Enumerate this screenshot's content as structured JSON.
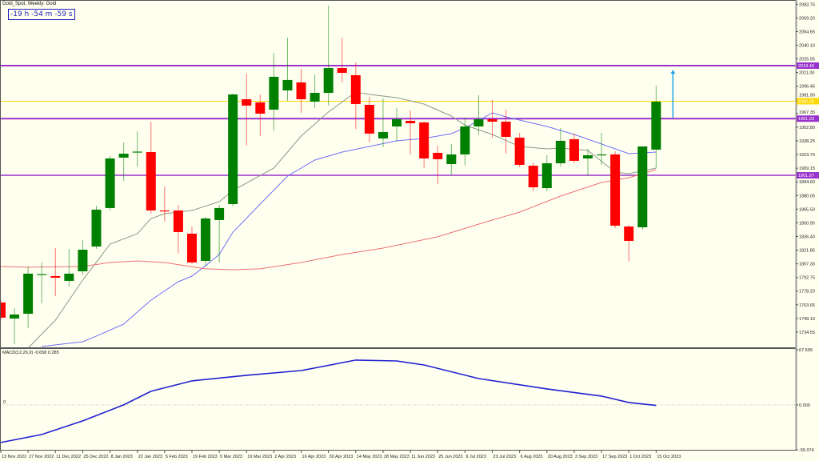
{
  "header": {
    "title": "Gold_Spot, Weekly:  Gold",
    "timer": "-19 h -54 m -59 s"
  },
  "colors": {
    "background": "#fffff0",
    "bull": "#008000",
    "bear": "#ff0000",
    "level_line": "#9932cc",
    "yellow_line": "#ffd700",
    "arrow": "#1ea0e6",
    "ma_gray": "#8a9a8a",
    "ma_blue": "#6f6ff5",
    "ma_red": "#f07070",
    "macd": "#2020d0"
  },
  "price_axis": {
    "ticks": [
      "2083.75",
      "2069.20",
      "2054.65",
      "2040.10",
      "2025.55",
      "2011.00",
      "1996.45",
      "1981.90",
      "1967.35",
      "1952.80",
      "1938.25",
      "1923.70",
      "1909.15",
      "1894.60",
      "1880.05",
      "1865.50",
      "1850.95",
      "1836.40",
      "1821.85",
      "1807.30",
      "1792.75",
      "1778.20",
      "1763.65",
      "1749.10",
      "1734.55"
    ],
    "ylim": [
      1718.3,
      2088.3
    ]
  },
  "levels": [
    {
      "price": 2018.4,
      "label": "2018.40",
      "type": "purple"
    },
    {
      "price": 1980.5,
      "label": "1980.50",
      "type": "yellow"
    },
    {
      "price": 1961.93,
      "label": "1961.93",
      "type": "purple"
    },
    {
      "price": 1901.57,
      "label": "1901.57",
      "type": "purple"
    }
  ],
  "arrow": {
    "icon": "up-arrow-icon",
    "date": "2023-10-15",
    "from": 1963,
    "to": 2014
  },
  "time_axis": [
    "13 Nov 2022",
    "27 Nov 2022",
    "11 Dec 2022",
    "25 Dec 2022",
    "8 Jan 2023",
    "22 Jan 2023",
    "5 Feb 2023",
    "19 Feb 2023",
    "5 Mar 2023",
    "19 Mar 2023",
    "2 Apr 2023",
    "16 Apr 2023",
    "30 Apr 2023",
    "14 May 2023",
    "28 May 2023",
    "11 Jun 2023",
    "25 Jun 2023",
    "9 Jul 2023",
    "23 Jul 2023",
    "6 Aug 2023",
    "20 Aug 2023",
    "3 Sep 2023",
    "17 Sep 2023",
    "1 Oct 2023",
    "15 Oct 2023"
  ],
  "chart_data": {
    "type": "candlestick",
    "candles": [
      {
        "d": "2022-11-13",
        "o": 1766.1,
        "h": 1768.6,
        "l": 1747.3,
        "c": 1749.9
      },
      {
        "d": "2022-11-20",
        "o": 1749.0,
        "h": 1760.1,
        "l": 1721.7,
        "c": 1753.3
      },
      {
        "d": "2022-11-27",
        "o": 1754.1,
        "h": 1804.4,
        "l": 1738.8,
        "c": 1796.8
      },
      {
        "d": "2022-12-04",
        "o": 1795.9,
        "h": 1808.7,
        "l": 1765.2,
        "c": 1796.3
      },
      {
        "d": "2022-12-11",
        "o": 1794.2,
        "h": 1824.0,
        "l": 1772.9,
        "c": 1792.5
      },
      {
        "d": "2022-12-18",
        "o": 1789.1,
        "h": 1823.2,
        "l": 1783.1,
        "c": 1796.8
      },
      {
        "d": "2022-12-25",
        "o": 1799.3,
        "h": 1832.6,
        "l": 1795.9,
        "c": 1822.3
      },
      {
        "d": "2023-01-01",
        "o": 1825.7,
        "h": 1869.2,
        "l": 1823.2,
        "c": 1865.0
      },
      {
        "d": "2023-01-08",
        "o": 1866.7,
        "h": 1922.1,
        "l": 1864.1,
        "c": 1919.5
      },
      {
        "d": "2023-01-15",
        "o": 1920.4,
        "h": 1936.6,
        "l": 1895.6,
        "c": 1924.6
      },
      {
        "d": "2023-01-22",
        "o": 1925.9,
        "h": 1948.5,
        "l": 1911.0,
        "c": 1926.8
      },
      {
        "d": "2023-01-29",
        "o": 1926.3,
        "h": 1958.7,
        "l": 1860.7,
        "c": 1864.1
      },
      {
        "d": "2023-02-05",
        "o": 1864.1,
        "h": 1889.7,
        "l": 1852.2,
        "c": 1863.7
      },
      {
        "d": "2023-02-12",
        "o": 1864.1,
        "h": 1870.1,
        "l": 1818.1,
        "c": 1841.1
      },
      {
        "d": "2023-02-19",
        "o": 1839.4,
        "h": 1847.0,
        "l": 1807.0,
        "c": 1808.7
      },
      {
        "d": "2023-02-26",
        "o": 1810.4,
        "h": 1857.3,
        "l": 1804.4,
        "c": 1855.6
      },
      {
        "d": "2023-03-05",
        "o": 1853.9,
        "h": 1870.1,
        "l": 1808.7,
        "c": 1866.7
      },
      {
        "d": "2023-03-12",
        "o": 1870.9,
        "h": 1988.6,
        "l": 1868.4,
        "c": 1987.7
      },
      {
        "d": "2023-03-19",
        "o": 1982.6,
        "h": 2009.9,
        "l": 1933.1,
        "c": 1975.8
      },
      {
        "d": "2023-03-26",
        "o": 1979.2,
        "h": 1987.7,
        "l": 1943.4,
        "c": 1967.2
      },
      {
        "d": "2023-04-02",
        "o": 1971.5,
        "h": 2032.0,
        "l": 1949.3,
        "c": 2006.5
      },
      {
        "d": "2023-04-09",
        "o": 1992.0,
        "h": 2048.2,
        "l": 1980.9,
        "c": 2003.1
      },
      {
        "d": "2023-04-16",
        "o": 2000.5,
        "h": 2015.0,
        "l": 1968.1,
        "c": 1982.6
      },
      {
        "d": "2023-04-23",
        "o": 1980.0,
        "h": 2009.0,
        "l": 1973.2,
        "c": 1989.4
      },
      {
        "d": "2023-04-30",
        "o": 1989.4,
        "h": 2082.3,
        "l": 1975.8,
        "c": 2015.8
      },
      {
        "d": "2023-05-07",
        "o": 2015.8,
        "h": 2048.2,
        "l": 2000.5,
        "c": 2010.7
      },
      {
        "d": "2023-05-14",
        "o": 2008.2,
        "h": 2021.8,
        "l": 1951.0,
        "c": 1977.5
      },
      {
        "d": "2023-05-21",
        "o": 1976.6,
        "h": 1985.1,
        "l": 1936.6,
        "c": 1946.0
      },
      {
        "d": "2023-05-28",
        "o": 1940.8,
        "h": 1983.4,
        "l": 1931.4,
        "c": 1947.6
      },
      {
        "d": "2023-06-04",
        "o": 1953.6,
        "h": 1973.2,
        "l": 1937.4,
        "c": 1961.3
      },
      {
        "d": "2023-06-11",
        "o": 1959.6,
        "h": 1970.7,
        "l": 1923.8,
        "c": 1957.0
      },
      {
        "d": "2023-06-18",
        "o": 1957.9,
        "h": 1958.7,
        "l": 1909.3,
        "c": 1919.5
      },
      {
        "d": "2023-06-25",
        "o": 1925.5,
        "h": 1933.1,
        "l": 1892.2,
        "c": 1918.7
      },
      {
        "d": "2023-07-02",
        "o": 1913.5,
        "h": 1934.8,
        "l": 1902.4,
        "c": 1923.8
      },
      {
        "d": "2023-07-09",
        "o": 1923.8,
        "h": 1963.0,
        "l": 1911.8,
        "c": 1953.6
      },
      {
        "d": "2023-07-16",
        "o": 1953.6,
        "h": 1986.9,
        "l": 1945.1,
        "c": 1961.3
      },
      {
        "d": "2023-07-23",
        "o": 1961.3,
        "h": 1981.7,
        "l": 1941.7,
        "c": 1958.7
      },
      {
        "d": "2023-07-30",
        "o": 1958.7,
        "h": 1971.5,
        "l": 1924.6,
        "c": 1942.5
      },
      {
        "d": "2023-08-06",
        "o": 1941.7,
        "h": 1946.8,
        "l": 1910.1,
        "c": 1912.7
      },
      {
        "d": "2023-08-13",
        "o": 1911.8,
        "h": 1915.2,
        "l": 1884.6,
        "c": 1888.8
      },
      {
        "d": "2023-08-20",
        "o": 1887.9,
        "h": 1922.9,
        "l": 1884.6,
        "c": 1914.4
      },
      {
        "d": "2023-08-27",
        "o": 1914.4,
        "h": 1951.9,
        "l": 1911.0,
        "c": 1938.3
      },
      {
        "d": "2023-09-03",
        "o": 1940.0,
        "h": 1945.9,
        "l": 1914.4,
        "c": 1917.0
      },
      {
        "d": "2023-09-10",
        "o": 1919.5,
        "h": 1929.7,
        "l": 1900.7,
        "c": 1922.9
      },
      {
        "d": "2023-09-17",
        "o": 1923.3,
        "h": 1946.8,
        "l": 1912.7,
        "c": 1923.8
      },
      {
        "d": "2023-09-24",
        "o": 1923.8,
        "h": 1927.2,
        "l": 1845.3,
        "c": 1847.9
      },
      {
        "d": "2023-10-01",
        "o": 1847.0,
        "h": 1848.7,
        "l": 1809.5,
        "c": 1831.7
      },
      {
        "d": "2023-10-08",
        "o": 1846.2,
        "h": 1932.3,
        "l": 1843.6,
        "c": 1932.3
      },
      {
        "d": "2023-10-15",
        "o": 1928.9,
        "h": 1997.1,
        "l": 1909.3,
        "c": 1980.0
      }
    ],
    "moving_averages": [
      {
        "color": "ma_gray",
        "points": [
          [
            "2022-11-27",
            1717.5
          ],
          [
            "2022-12-11",
            1747.3
          ],
          [
            "2022-12-25",
            1789.9
          ],
          [
            "2023-01-08",
            1828.3
          ],
          [
            "2023-01-22",
            1839.4
          ],
          [
            "2023-01-29",
            1855.6
          ],
          [
            "2023-02-05",
            1860.7
          ],
          [
            "2023-02-19",
            1864.1
          ],
          [
            "2023-03-05",
            1873.5
          ],
          [
            "2023-03-12",
            1885.4
          ],
          [
            "2023-04-02",
            1909.3
          ],
          [
            "2023-04-16",
            1943.4
          ],
          [
            "2023-04-30",
            1969.0
          ],
          [
            "2023-05-14",
            1990.3
          ],
          [
            "2023-05-21",
            1987.7
          ],
          [
            "2023-06-04",
            1984.3
          ],
          [
            "2023-06-18",
            1977.5
          ],
          [
            "2023-07-02",
            1964.7
          ],
          [
            "2023-07-09",
            1955.0
          ],
          [
            "2023-07-23",
            1945.1
          ],
          [
            "2023-08-06",
            1932.3
          ],
          [
            "2023-08-20",
            1929.7
          ],
          [
            "2023-08-27",
            1930.6
          ],
          [
            "2023-09-10",
            1928.0
          ],
          [
            "2023-09-24",
            1905.0
          ],
          [
            "2023-10-01",
            1903.3
          ],
          [
            "2023-10-15",
            1909.3
          ]
        ]
      },
      {
        "color": "ma_blue",
        "points": [
          [
            "2022-12-04",
            1719.2
          ],
          [
            "2022-12-25",
            1724.3
          ],
          [
            "2023-01-01",
            1730.3
          ],
          [
            "2023-01-15",
            1743.0
          ],
          [
            "2023-01-29",
            1768.6
          ],
          [
            "2023-02-12",
            1788.2
          ],
          [
            "2023-02-19",
            1794.2
          ],
          [
            "2023-02-26",
            1805.3
          ],
          [
            "2023-03-05",
            1817.2
          ],
          [
            "2023-03-12",
            1841.1
          ],
          [
            "2023-04-09",
            1900.7
          ],
          [
            "2023-04-23",
            1917.8
          ],
          [
            "2023-05-07",
            1926.3
          ],
          [
            "2023-05-21",
            1932.3
          ],
          [
            "2023-06-04",
            1938.3
          ],
          [
            "2023-06-18",
            1940.8
          ],
          [
            "2023-07-02",
            1945.9
          ],
          [
            "2023-07-09",
            1951.9
          ],
          [
            "2023-07-23",
            1968.1
          ],
          [
            "2023-07-30",
            1963.8
          ],
          [
            "2023-08-20",
            1953.6
          ],
          [
            "2023-09-03",
            1945.1
          ],
          [
            "2023-09-17",
            1934.9
          ],
          [
            "2023-10-01",
            1924.6
          ],
          [
            "2023-10-15",
            1926.3
          ]
        ]
      },
      {
        "color": "ma_red",
        "points": [
          [
            "2022-11-13",
            1804.4
          ],
          [
            "2022-11-27",
            1803.6
          ],
          [
            "2022-12-25",
            1804.4
          ],
          [
            "2023-01-08",
            1808.7
          ],
          [
            "2023-01-22",
            1810.4
          ],
          [
            "2023-02-05",
            1808.7
          ],
          [
            "2023-02-26",
            1801.9
          ],
          [
            "2023-03-12",
            1801.0
          ],
          [
            "2023-03-26",
            1801.9
          ],
          [
            "2023-04-16",
            1808.7
          ],
          [
            "2023-05-07",
            1817.2
          ],
          [
            "2023-05-28",
            1824.0
          ],
          [
            "2023-06-25",
            1836.0
          ],
          [
            "2023-07-16",
            1849.6
          ],
          [
            "2023-08-06",
            1862.4
          ],
          [
            "2023-08-27",
            1879.4
          ],
          [
            "2023-09-17",
            1893.9
          ],
          [
            "2023-10-01",
            1899.0
          ],
          [
            "2023-10-15",
            1907.6
          ]
        ]
      }
    ],
    "macd": {
      "label": "MACD(12,26,9) -0.658 0.285",
      "ticks": [
        "67.599",
        "0.000",
        "-55.074"
      ],
      "zero_label": "0",
      "ylim": [
        -55.074,
        67.599
      ],
      "points": [
        [
          "2022-11-13",
          -46.1
        ],
        [
          "2022-12-04",
          -36.3
        ],
        [
          "2022-12-25",
          -19.6
        ],
        [
          "2023-01-15",
          0
        ],
        [
          "2023-01-29",
          16.7
        ],
        [
          "2023-02-19",
          29.4
        ],
        [
          "2023-03-19",
          36.3
        ],
        [
          "2023-04-16",
          42.1
        ],
        [
          "2023-05-14",
          54.9
        ],
        [
          "2023-06-04",
          53.9
        ],
        [
          "2023-06-18",
          49.0
        ],
        [
          "2023-07-16",
          32.3
        ],
        [
          "2023-08-20",
          19.6
        ],
        [
          "2023-09-17",
          10.8
        ],
        [
          "2023-10-01",
          2.9
        ],
        [
          "2023-10-15",
          -0.658
        ]
      ]
    }
  }
}
